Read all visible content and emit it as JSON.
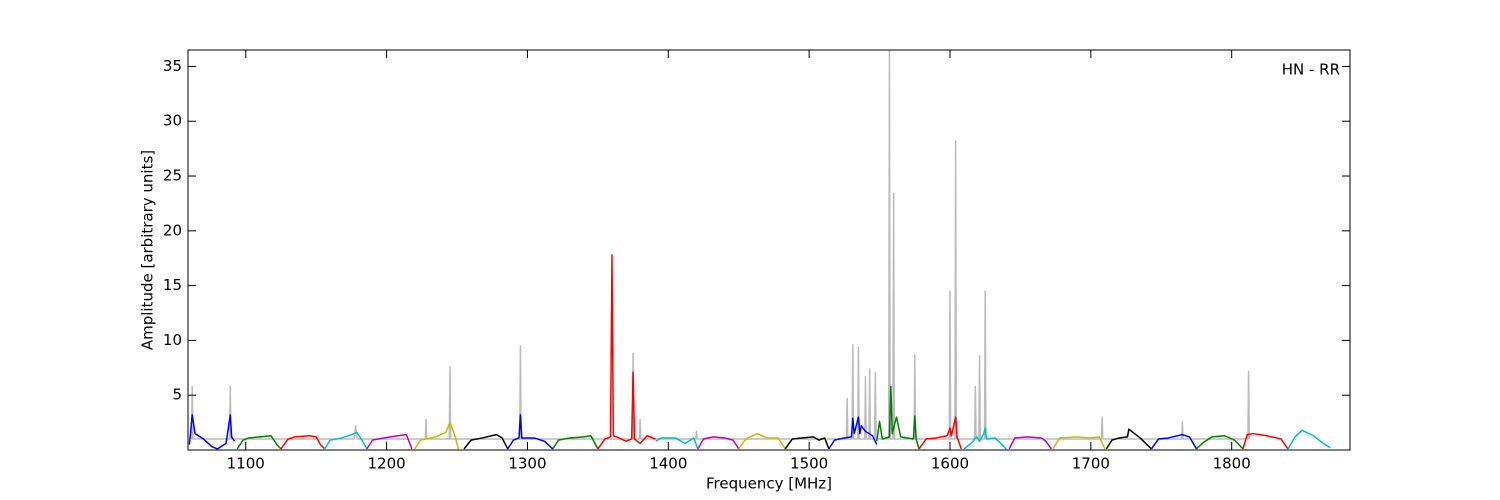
{
  "chart_data": {
    "type": "line",
    "xlabel": "Frequency [MHz]",
    "ylabel": "Amplitude [arbitrary units]",
    "annotation": "HN - RR",
    "xlim": [
      1059,
      1884
    ],
    "ylim": [
      0,
      36.5
    ],
    "xticks": [
      1100,
      1200,
      1300,
      1400,
      1500,
      1600,
      1700,
      1800
    ],
    "yticks": [
      5,
      10,
      15,
      20,
      25,
      30,
      35
    ],
    "series": [
      {
        "color": "#bbbbbb",
        "x": [
          1061.5,
          1062,
          1062.5,
          1088.5,
          1089,
          1089.5,
          1177,
          1178,
          1179,
          1227.5,
          1228,
          1228.5,
          1244.5,
          1245,
          1245.5,
          1294.5,
          1295,
          1295.5,
          1374.5,
          1375,
          1375.5,
          1379.5,
          1380,
          1380.5,
          1419.5,
          1420,
          1420.5,
          1526.5,
          1527,
          1527.5,
          1530.5,
          1531,
          1531.5,
          1534.5,
          1535,
          1535.5,
          1539.5,
          1540,
          1540.5,
          1542.5,
          1543,
          1543.5,
          1546.5,
          1547,
          1547.5,
          1556.5,
          1557,
          1557.5,
          1559.5,
          1560,
          1560.5,
          1574.5,
          1575,
          1575.5,
          1599.5,
          1600,
          1600.5,
          1603.5,
          1604,
          1604.5,
          1617.5,
          1618,
          1618.5,
          1620.5,
          1621,
          1621.5,
          1624.5,
          1625,
          1625.5,
          1707.5,
          1708,
          1708.5,
          1764.5,
          1765,
          1765.5,
          1811.5,
          1812,
          1812.5
        ],
        "values": [
          1,
          5.8,
          1,
          1,
          5.8,
          1,
          1,
          2.2,
          1,
          1,
          2.8,
          1,
          1,
          7.6,
          1,
          1,
          9.5,
          1,
          1,
          8.8,
          1,
          1,
          2.8,
          1,
          1,
          1.7,
          1,
          1,
          4.7,
          1,
          1,
          9.6,
          1,
          1,
          9.4,
          1,
          1,
          6.7,
          1,
          1,
          7.4,
          1,
          1,
          7.1,
          1,
          1,
          36.5,
          1,
          1,
          23.4,
          1,
          1,
          8.7,
          1,
          1,
          14.5,
          1,
          1,
          28.2,
          1,
          1,
          5.8,
          1,
          1,
          8.6,
          1,
          1,
          14.5,
          1,
          1,
          3,
          1,
          1,
          2.6,
          1,
          1,
          7.2,
          1
        ]
      },
      {
        "color": "#0000ff",
        "x": [
          1060,
          1062,
          1064,
          1070,
          1076,
          1080,
          1086,
          1089,
          1090,
          1092
        ],
        "values": [
          0.5,
          3.2,
          1.5,
          1.0,
          0.3,
          0.1,
          0.6,
          3.2,
          1.2,
          0.8
        ]
      },
      {
        "color": "#008000",
        "x": [
          1094,
          1098,
          1102,
          1110,
          1118,
          1122,
          1125
        ],
        "values": [
          0.1,
          0.9,
          1.1,
          1.2,
          1.3,
          0.5,
          0.1
        ]
      },
      {
        "color": "#ff0000",
        "x": [
          1125,
          1130,
          1135,
          1145,
          1150,
          1153,
          1156
        ],
        "values": [
          0.1,
          1.0,
          1.2,
          1.3,
          1.2,
          0.5,
          0.1
        ]
      },
      {
        "color": "#00bfbf",
        "x": [
          1156,
          1160,
          1168,
          1175,
          1179,
          1183,
          1186
        ],
        "values": [
          0.1,
          0.9,
          1.1,
          1.4,
          1.6,
          0.8,
          0.1
        ]
      },
      {
        "color": "#bf00bf",
        "x": [
          1186,
          1190,
          1198,
          1208,
          1214,
          1218
        ],
        "values": [
          0.1,
          0.9,
          1.1,
          1.3,
          1.4,
          0.1
        ]
      },
      {
        "color": "#bfbf00",
        "x": [
          1220,
          1224,
          1228,
          1235,
          1242,
          1245,
          1248,
          1251
        ],
        "values": [
          0.1,
          0.9,
          1.0,
          1.2,
          1.6,
          2.5,
          1.5,
          0.1
        ]
      },
      {
        "color": "#000000",
        "x": [
          1255,
          1260,
          1268,
          1278,
          1282,
          1286
        ],
        "values": [
          0.1,
          0.9,
          1.1,
          1.4,
          1.1,
          0.1
        ]
      },
      {
        "color": "#0000ff",
        "x": [
          1286,
          1290,
          1294,
          1295,
          1296,
          1305,
          1312,
          1318
        ],
        "values": [
          0.1,
          0.9,
          1.1,
          3.2,
          1.1,
          1.1,
          0.8,
          0.1
        ]
      },
      {
        "color": "#008000",
        "x": [
          1318,
          1322,
          1330,
          1340,
          1345,
          1350
        ],
        "values": [
          0.1,
          0.9,
          1.1,
          1.2,
          1.3,
          0.1
        ]
      },
      {
        "color": "#ff0000",
        "x": [
          1350,
          1355,
          1359,
          1360,
          1361,
          1365,
          1370,
          1374,
          1375,
          1376,
          1380,
          1385,
          1391
        ],
        "values": [
          0.1,
          1.0,
          1.2,
          17.8,
          1.3,
          1.1,
          0.8,
          1.0,
          7.1,
          1.0,
          0.6,
          1.3,
          1.0
        ]
      },
      {
        "color": "#00bfbf",
        "x": [
          1391,
          1395,
          1405,
          1412,
          1418,
          1421
        ],
        "values": [
          0.8,
          1.1,
          1.1,
          0.6,
          1.1,
          0.1
        ]
      },
      {
        "color": "#bf00bf",
        "x": [
          1421,
          1425,
          1432,
          1440,
          1446,
          1450
        ],
        "values": [
          0.1,
          1.0,
          1.2,
          1.1,
          0.9,
          0.1
        ]
      },
      {
        "color": "#bfbf00",
        "x": [
          1450,
          1455,
          1463,
          1470,
          1478,
          1483
        ],
        "values": [
          0.1,
          1.0,
          1.5,
          1.1,
          1.1,
          0.1
        ]
      },
      {
        "color": "#000000",
        "x": [
          1483,
          1488,
          1495,
          1503,
          1507,
          1511,
          1514
        ],
        "values": [
          0.1,
          1.0,
          1.1,
          1.2,
          0.9,
          1.1,
          0.1
        ]
      },
      {
        "color": "#0000ff",
        "x": [
          1514,
          1518,
          1525,
          1530,
          1531,
          1532,
          1535,
          1536,
          1537,
          1540,
          1545,
          1548
        ],
        "values": [
          0.1,
          0.9,
          1.1,
          1.2,
          2.9,
          1.5,
          3.0,
          1.5,
          2.2,
          1.7,
          1.3,
          0.5
        ]
      },
      {
        "color": "#008000",
        "x": [
          1548,
          1550,
          1552,
          1557,
          1558,
          1559,
          1562,
          1565,
          1570,
          1574,
          1575,
          1576,
          1578
        ],
        "values": [
          0.8,
          2.6,
          1.0,
          1.2,
          5.8,
          1.5,
          3.0,
          1.2,
          1.1,
          1.0,
          3.1,
          1.0,
          0.1
        ]
      },
      {
        "color": "#ff0000",
        "x": [
          1578,
          1583,
          1590,
          1598,
          1600,
          1601,
          1604,
          1605,
          1608
        ],
        "values": [
          0.1,
          1.0,
          1.1,
          1.3,
          2.0,
          1.3,
          3.0,
          1.2,
          0.1
        ]
      },
      {
        "color": "#00bfbf",
        "x": [
          1610,
          1615,
          1619,
          1621,
          1624,
          1625,
          1626,
          1632,
          1640
        ],
        "values": [
          0.1,
          0.6,
          1.2,
          0.8,
          1.5,
          2.0,
          1.0,
          1.1,
          0.1
        ]
      },
      {
        "color": "#bf00bf",
        "x": [
          1642,
          1646,
          1655,
          1665,
          1668,
          1672
        ],
        "values": [
          0.1,
          1.1,
          1.2,
          1.1,
          0.8,
          0.1
        ]
      },
      {
        "color": "#bfbf00",
        "x": [
          1673,
          1678,
          1690,
          1700,
          1706,
          1710
        ],
        "values": [
          0.1,
          1.1,
          1.2,
          1.1,
          1.2,
          0.1
        ]
      },
      {
        "color": "#000000",
        "x": [
          1711,
          1715,
          1720,
          1726,
          1727,
          1735,
          1743
        ],
        "values": [
          0.1,
          0.9,
          1.1,
          1.2,
          1.9,
          1.1,
          0.1
        ]
      },
      {
        "color": "#0000ff",
        "x": [
          1743,
          1748,
          1755,
          1765,
          1770,
          1775
        ],
        "values": [
          0.1,
          1.0,
          1.1,
          1.4,
          1.2,
          0.1
        ]
      },
      {
        "color": "#008000",
        "x": [
          1775,
          1780,
          1786,
          1795,
          1802,
          1808
        ],
        "values": [
          0.1,
          0.7,
          1.2,
          1.3,
          0.9,
          0.1
        ]
      },
      {
        "color": "#ff0000",
        "x": [
          1808,
          1811,
          1815,
          1825,
          1835,
          1840
        ],
        "values": [
          0.1,
          1.4,
          1.5,
          1.3,
          1.0,
          0.1
        ]
      },
      {
        "color": "#00bfbf",
        "x": [
          1840,
          1845,
          1850,
          1858,
          1865,
          1870
        ],
        "values": [
          0.1,
          1.2,
          1.8,
          1.3,
          0.6,
          0.2
        ]
      }
    ]
  }
}
